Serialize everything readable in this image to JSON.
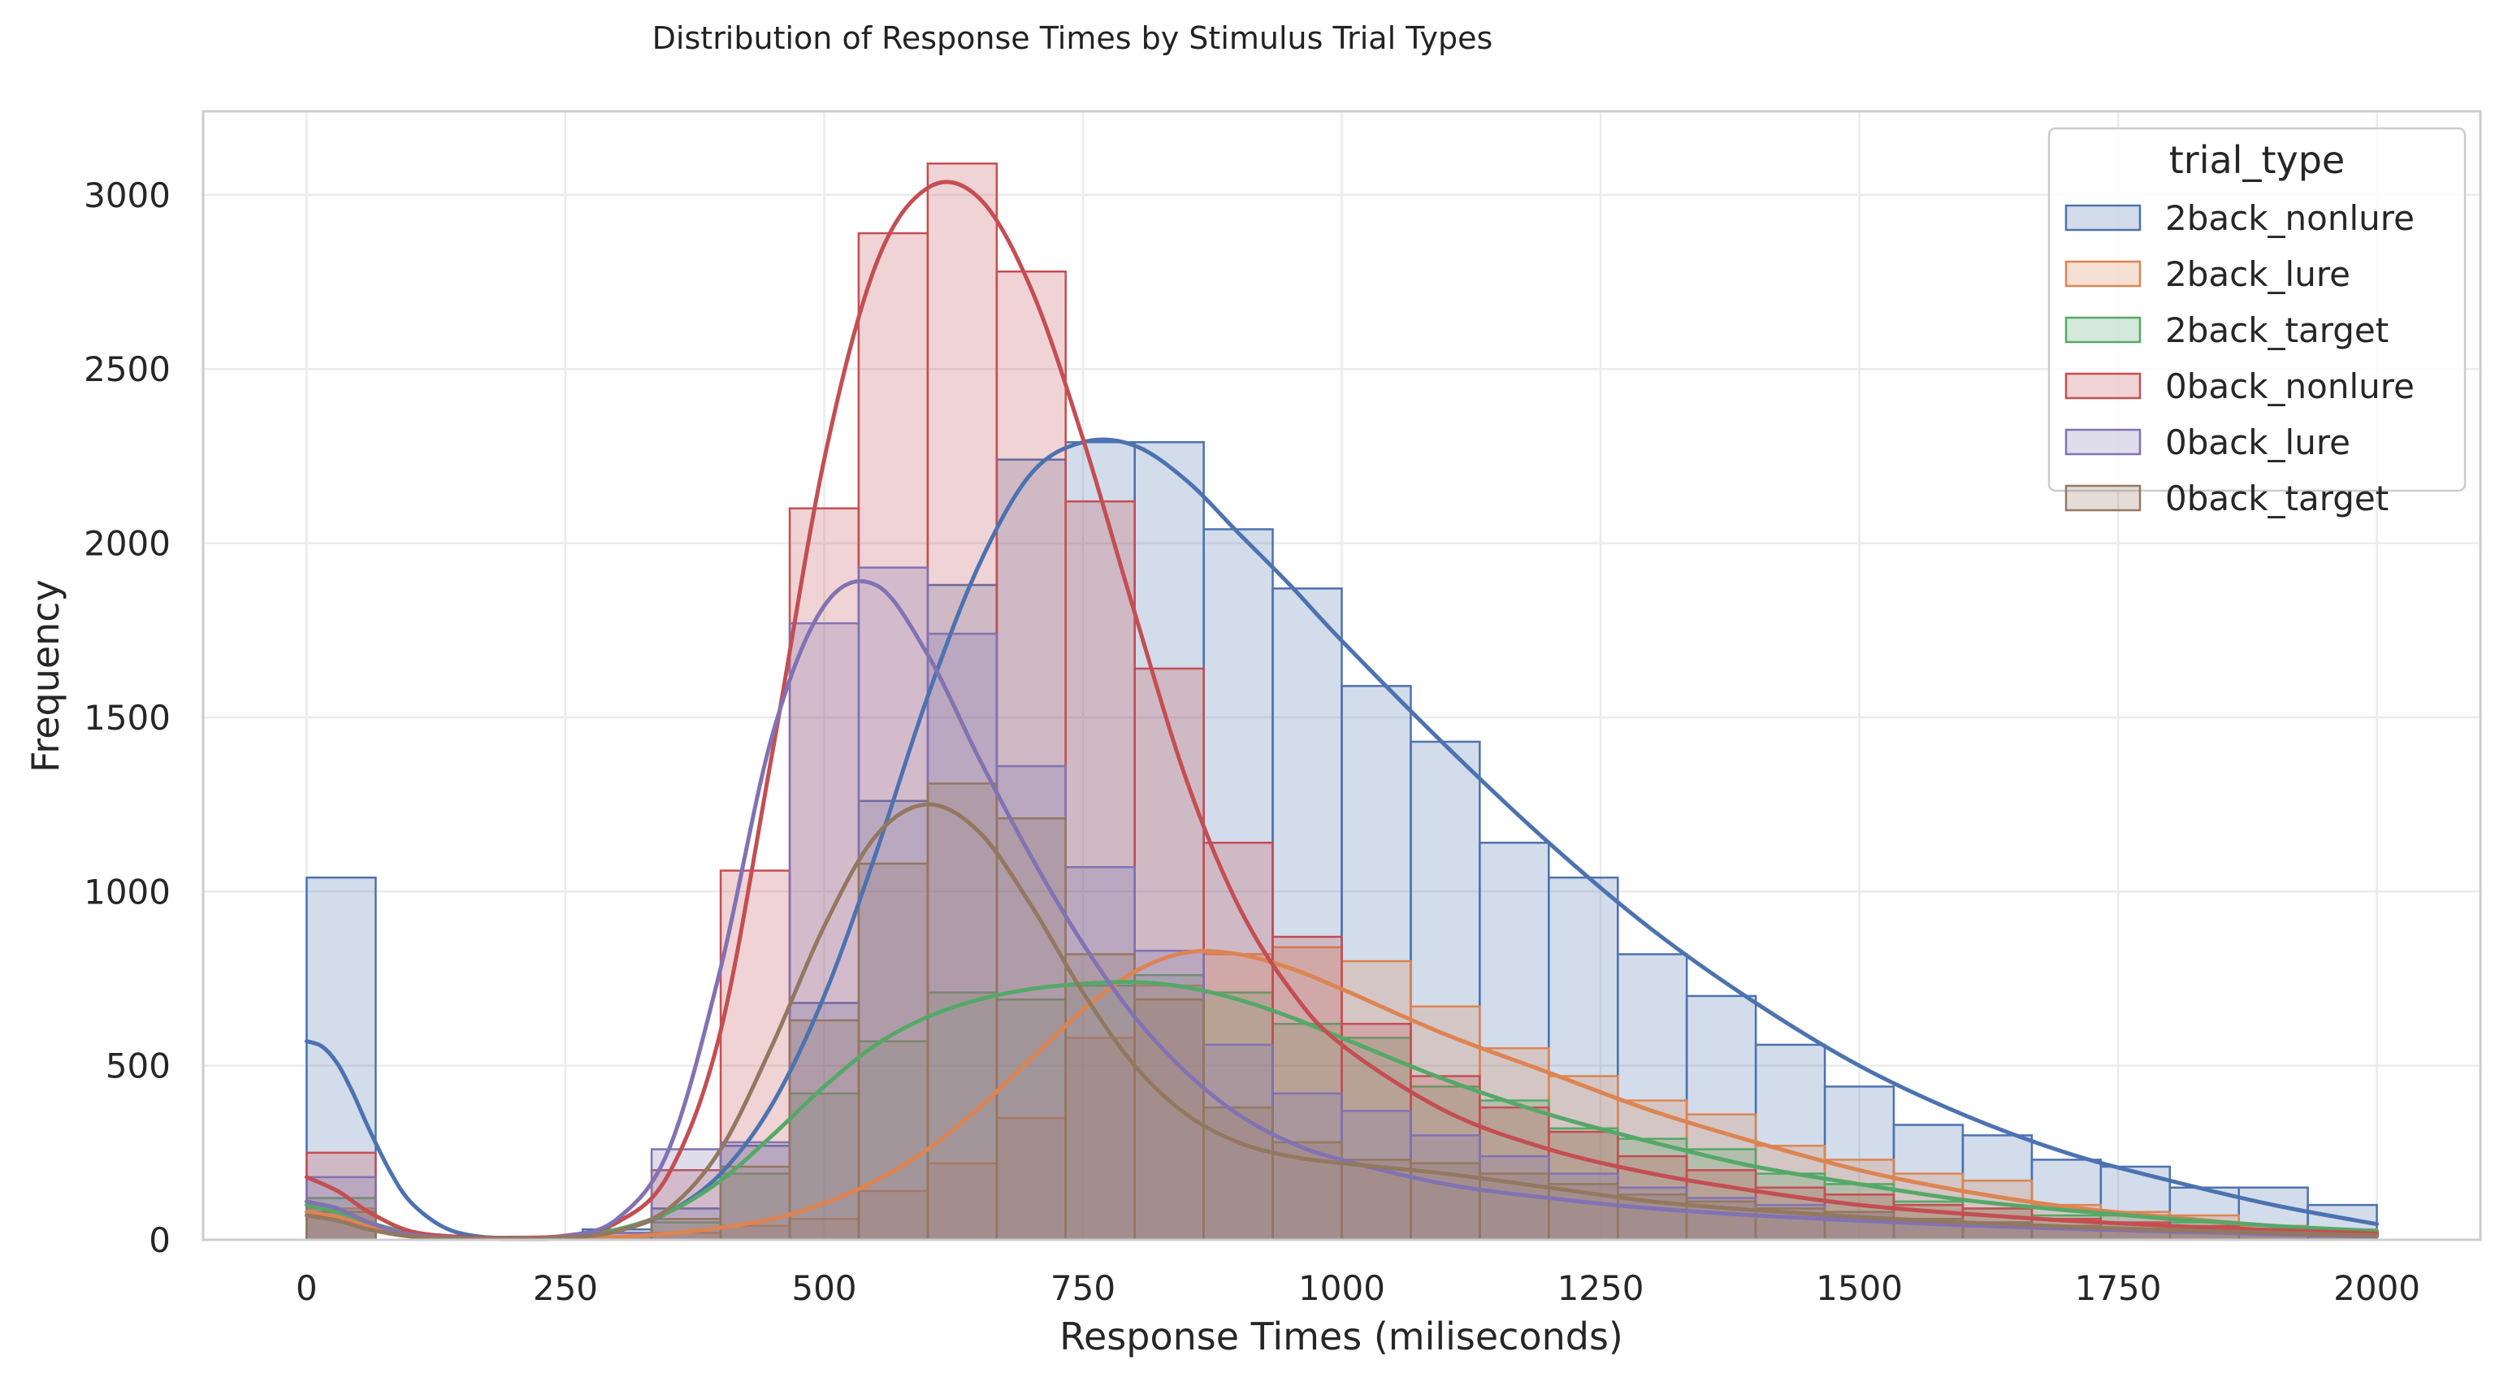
{
  "chart_data": {
    "type": "histogram",
    "title": "Distribution of Response Times by Stimulus Trial Types",
    "xlabel": "Response Times (miliseconds)",
    "ylabel": "Frequency",
    "xlim": [
      -100,
      2100
    ],
    "ylim": [
      0,
      3240
    ],
    "xticks": [
      0,
      250,
      500,
      750,
      1000,
      1250,
      1500,
      1750,
      2000
    ],
    "yticks": [
      0,
      500,
      1000,
      1500,
      2000,
      2500,
      3000
    ],
    "grid": true,
    "legend": {
      "title": "trial_type",
      "placement": "top-right"
    },
    "bin_edges": [
      0,
      66.7,
      133.3,
      200,
      266.7,
      333.3,
      400,
      466.7,
      533.3,
      600,
      666.7,
      733.3,
      800,
      866.7,
      933.3,
      1000,
      1066.7,
      1133.3,
      1200,
      1266.7,
      1333.3,
      1400,
      1466.7,
      1533.3,
      1600,
      1666.7,
      1733.3,
      1800,
      1866.7,
      1933.3,
      2000
    ],
    "series": [
      {
        "name": "2back_nonlure",
        "color": "#4c72b0",
        "counts": [
          1040,
          0,
          0,
          0,
          30,
          90,
          270,
          680,
          1260,
          1880,
          2240,
          2290,
          2290,
          2040,
          1870,
          1590,
          1430,
          1140,
          1040,
          820,
          700,
          560,
          440,
          330,
          300,
          230,
          210,
          150,
          150,
          100
        ],
        "kde_x": [
          0,
          15,
          30,
          45,
          60,
          80,
          100,
          130,
          160,
          200,
          250,
          300,
          350,
          400,
          450,
          500,
          550,
          600,
          650,
          700,
          750,
          800,
          850,
          900,
          950,
          1000,
          1100,
          1200,
          1300,
          1400,
          1500,
          1600,
          1700,
          1800,
          1900,
          2000
        ],
        "kde_y": [
          570,
          555,
          505,
          420,
          320,
          200,
          110,
          40,
          12,
          4,
          8,
          25,
          80,
          190,
          390,
          700,
          1110,
          1560,
          1940,
          2200,
          2290,
          2280,
          2180,
          2030,
          1880,
          1720,
          1420,
          1140,
          890,
          680,
          500,
          360,
          250,
          170,
          100,
          45
        ]
      },
      {
        "name": "2back_lure",
        "color": "#dd8452",
        "counts": [
          90,
          0,
          0,
          0,
          10,
          20,
          40,
          60,
          140,
          220,
          350,
          580,
          730,
          820,
          840,
          800,
          670,
          550,
          470,
          400,
          360,
          270,
          230,
          190,
          170,
          100,
          80,
          70,
          40,
          30
        ],
        "kde_x": [
          0,
          30,
          60,
          100,
          150,
          200,
          250,
          300,
          350,
          400,
          450,
          500,
          550,
          600,
          650,
          700,
          750,
          800,
          850,
          900,
          950,
          1000,
          1100,
          1200,
          1300,
          1400,
          1500,
          1600,
          1700,
          1800,
          1900,
          2000
        ],
        "kde_y": [
          80,
          65,
          40,
          15,
          5,
          2,
          3,
          8,
          18,
          35,
          60,
          105,
          170,
          260,
          380,
          520,
          660,
          770,
          825,
          820,
          780,
          720,
          590,
          480,
          370,
          280,
          200,
          140,
          95,
          65,
          40,
          25
        ]
      },
      {
        "name": "2back_target",
        "color": "#55a868",
        "counts": [
          120,
          0,
          0,
          0,
          10,
          50,
          190,
          420,
          570,
          710,
          690,
          730,
          760,
          710,
          620,
          580,
          440,
          400,
          320,
          290,
          260,
          190,
          160,
          110,
          90,
          70,
          70,
          50,
          30,
          20
        ],
        "kde_x": [
          0,
          30,
          60,
          100,
          150,
          200,
          250,
          300,
          350,
          400,
          450,
          500,
          550,
          600,
          650,
          700,
          750,
          800,
          850,
          900,
          950,
          1000,
          1100,
          1200,
          1300,
          1400,
          1500,
          1600,
          1700,
          1800,
          1900,
          2000
        ],
        "kde_y": [
          100,
          80,
          50,
          20,
          8,
          5,
          10,
          30,
          80,
          170,
          300,
          440,
          560,
          640,
          690,
          720,
          735,
          740,
          725,
          690,
          640,
          580,
          460,
          360,
          280,
          210,
          160,
          115,
          85,
          60,
          40,
          25
        ]
      },
      {
        "name": "0back_nonlure",
        "color": "#c44e52",
        "counts": [
          250,
          0,
          0,
          0,
          20,
          200,
          1060,
          2100,
          2890,
          3090,
          2780,
          2120,
          1640,
          1140,
          870,
          620,
          470,
          380,
          310,
          240,
          200,
          150,
          130,
          100,
          90,
          60,
          50,
          40,
          30,
          20
        ],
        "kde_x": [
          0,
          30,
          60,
          100,
          150,
          200,
          250,
          300,
          350,
          400,
          450,
          500,
          550,
          600,
          650,
          700,
          750,
          800,
          850,
          900,
          950,
          1000,
          1100,
          1200,
          1300,
          1400,
          1500,
          1600,
          1700,
          1800,
          1900,
          2000
        ],
        "kde_y": [
          180,
          140,
          80,
          25,
          8,
          6,
          12,
          50,
          190,
          600,
          1400,
          2240,
          2800,
          3020,
          2990,
          2730,
          2300,
          1800,
          1320,
          960,
          720,
          560,
          370,
          260,
          190,
          140,
          100,
          75,
          55,
          40,
          28,
          18
        ]
      },
      {
        "name": "0back_lure",
        "color": "#8172b3",
        "counts": [
          180,
          0,
          0,
          0,
          20,
          260,
          280,
          1770,
          1930,
          1740,
          1360,
          1070,
          830,
          560,
          420,
          370,
          300,
          240,
          190,
          150,
          120,
          100,
          80,
          60,
          50,
          40,
          30,
          30,
          20,
          10
        ],
        "kde_x": [
          0,
          30,
          60,
          100,
          150,
          200,
          250,
          300,
          350,
          400,
          450,
          500,
          550,
          600,
          650,
          700,
          750,
          800,
          850,
          900,
          950,
          1000,
          1100,
          1200,
          1300,
          1400,
          1500,
          1600,
          1700,
          1800,
          1900,
          2000
        ],
        "kde_y": [
          110,
          90,
          50,
          15,
          5,
          4,
          10,
          60,
          260,
          780,
          1450,
          1820,
          1880,
          1680,
          1380,
          1100,
          850,
          640,
          480,
          360,
          280,
          230,
          160,
          120,
          90,
          70,
          55,
          42,
          32,
          24,
          16,
          10
        ]
      },
      {
        "name": "0back_target",
        "color": "#937860",
        "counts": [
          80,
          0,
          0,
          0,
          10,
          60,
          210,
          630,
          1080,
          1310,
          1210,
          820,
          690,
          380,
          280,
          230,
          220,
          190,
          160,
          130,
          110,
          90,
          80,
          60,
          50,
          40,
          30,
          20,
          20,
          10
        ],
        "kde_x": [
          0,
          30,
          60,
          100,
          150,
          200,
          250,
          300,
          350,
          400,
          450,
          500,
          550,
          600,
          650,
          700,
          750,
          800,
          850,
          900,
          950,
          1000,
          1100,
          1200,
          1300,
          1400,
          1500,
          1600,
          1700,
          1800,
          1900,
          2000
        ],
        "kde_y": [
          70,
          55,
          30,
          10,
          4,
          3,
          6,
          25,
          90,
          260,
          560,
          900,
          1160,
          1250,
          1170,
          960,
          710,
          500,
          360,
          280,
          240,
          220,
          190,
          150,
          110,
          85,
          65,
          50,
          38,
          28,
          20,
          12
        ]
      }
    ]
  }
}
